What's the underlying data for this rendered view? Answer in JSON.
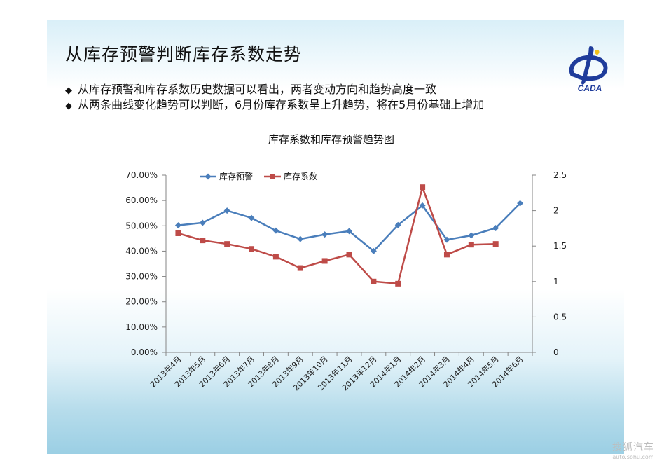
{
  "slide": {
    "title": "从库存预警判断库存系数走势",
    "bullets": [
      {
        "marker": "◆",
        "text": "从库存预警和库存系数历史数据可以看出，两者变动方向和趋势高度一致"
      },
      {
        "marker": "◆",
        "text": "从两条曲线变化趋势可以判断，6月份库存系数呈上升趋势，将在5月份基础上增加"
      }
    ],
    "logo_text": "CADA"
  },
  "watermark": {
    "main": "搜狐汽车",
    "sub": "auto.sohu.com"
  },
  "chart_data": {
    "type": "line",
    "title": "库存系数和库存预警趋势图",
    "categories": [
      "2013年4月",
      "2013年5月",
      "2013年6月",
      "2013年7月",
      "2013年8月",
      "2013年9月",
      "2013年10月",
      "2013年11月",
      "2013年12月",
      "2014年1月",
      "2014年2月",
      "2014年3月",
      "2014年4月",
      "2014年5月",
      "2014年6月"
    ],
    "series": [
      {
        "name": "库存预警",
        "axis": "left",
        "color": "#4a7ebb",
        "marker": "diamond",
        "values": [
          0.502,
          0.512,
          0.56,
          0.531,
          0.481,
          0.448,
          0.466,
          0.479,
          0.4,
          0.503,
          0.58,
          0.445,
          0.462,
          0.491,
          0.589
        ]
      },
      {
        "name": "库存系数",
        "axis": "right",
        "color": "#be4b48",
        "marker": "square",
        "values": [
          1.68,
          1.58,
          1.53,
          1.46,
          1.35,
          1.19,
          1.29,
          1.38,
          1.0,
          0.97,
          2.33,
          1.38,
          1.52,
          1.53,
          null
        ]
      }
    ],
    "y_left": {
      "min": 0,
      "max": 0.7,
      "step": 0.1,
      "ticks": [
        "0.00%",
        "10.00%",
        "20.00%",
        "30.00%",
        "40.00%",
        "50.00%",
        "60.00%",
        "70.00%"
      ]
    },
    "y_right": {
      "min": 0,
      "max": 2.5,
      "step": 0.5,
      "ticks": [
        "0",
        "0.5",
        "1",
        "1.5",
        "2",
        "2.5"
      ]
    },
    "grid": false,
    "legend_position": "top-left"
  }
}
